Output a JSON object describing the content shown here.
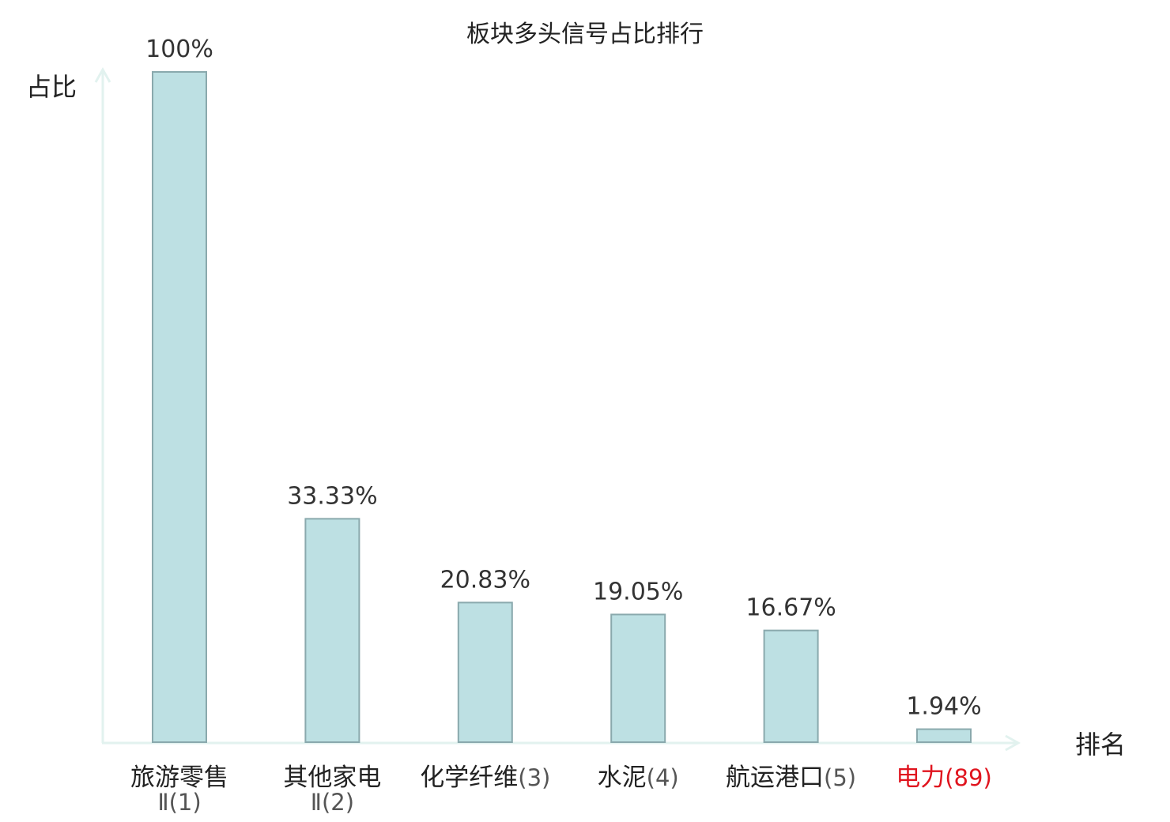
{
  "chart_data": {
    "type": "bar",
    "title": "板块多头信号占比排行",
    "ylabel": "占比",
    "xlabel": "排名",
    "ylim": [
      0,
      100
    ],
    "grid": false,
    "legend": "none",
    "bar_color": "#bde0e3",
    "bar_border_color": "#8aa9ad",
    "axis_color": "#e2f2ef",
    "highlight_color": "#e0141e",
    "categories": [
      {
        "name": "旅游零售",
        "rank": "Ⅱ(1)",
        "value": 100,
        "label": "100%",
        "highlight": false
      },
      {
        "name": "其他家电",
        "rank": "Ⅱ(2)",
        "value": 33.33,
        "label": "33.33%",
        "highlight": false
      },
      {
        "name": "化学纤维",
        "rank": "(3)",
        "value": 20.83,
        "label": "20.83%",
        "highlight": false
      },
      {
        "name": "水泥",
        "rank": "(4)",
        "value": 19.05,
        "label": "19.05%",
        "highlight": false
      },
      {
        "name": "航运港口",
        "rank": "(5)",
        "value": 16.67,
        "label": "16.67%",
        "highlight": false
      },
      {
        "name": "电力",
        "rank": "(89)",
        "value": 1.94,
        "label": "1.94%",
        "highlight": true
      }
    ]
  }
}
